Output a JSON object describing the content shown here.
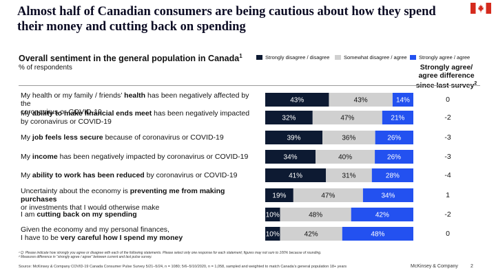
{
  "header": {
    "title": "Almost half of Canadian consumers are being cautious about how they spend their money and cutting back on spending",
    "flag_icon": "canada-flag-icon"
  },
  "chart_header": {
    "subtitle": "Overall sentiment in the general population in Canada",
    "subtitle_footnote": "1",
    "unit": "% of respondents",
    "diff_header": [
      "Strongly agree/",
      "agree difference",
      "since last survey"
    ],
    "diff_header_footnote": "2"
  },
  "chart_data": {
    "type": "bar",
    "stacked": true,
    "orientation": "horizontal",
    "normalized": true,
    "colors": {
      "disagree": "#0d1a32",
      "somewhat": "#d0d0d0",
      "agree": "#2351f0"
    },
    "legend": [
      {
        "key": "disagree",
        "label": "Strongly disagree / disagree"
      },
      {
        "key": "somewhat",
        "label": "Somewhat disagree / agree"
      },
      {
        "key": "agree",
        "label": "Strongly agree / agree"
      }
    ],
    "rows": [
      {
        "label_parts": [
          {
            "t": "My health or my family / friends’ "
          },
          {
            "t": "health",
            "b": true
          },
          {
            "t": " has been negatively affected by the"
          },
          {
            "br": true
          },
          {
            "t": "coronavirus or COVID-19"
          }
        ],
        "values": [
          43,
          43,
          14
        ],
        "diff": "0"
      },
      {
        "label_parts": [
          {
            "t": "My "
          },
          {
            "t": "ability to make financial ends meet",
            "b": true
          },
          {
            "t": " has been negatively impacted"
          },
          {
            "br": true
          },
          {
            "t": "by coronavirus or COVID-19"
          }
        ],
        "values": [
          32,
          47,
          21
        ],
        "diff": "-2"
      },
      {
        "label_parts": [
          {
            "t": "My "
          },
          {
            "t": "job feels less secure",
            "b": true
          },
          {
            "t": " because of coronavirus or COVID-19"
          }
        ],
        "values": [
          39,
          36,
          26
        ],
        "diff": "-3"
      },
      {
        "label_parts": [
          {
            "t": "My "
          },
          {
            "t": "income",
            "b": true
          },
          {
            "t": " has been negatively impacted by coronavirus or COVID-19"
          }
        ],
        "values": [
          34,
          40,
          26
        ],
        "diff": "-3"
      },
      {
        "label_parts": [
          {
            "t": "My "
          },
          {
            "t": "ability to work has been reduced",
            "b": true
          },
          {
            "t": " by coronavirus or COVID-19"
          }
        ],
        "values": [
          41,
          31,
          28
        ],
        "diff": "-4"
      },
      {
        "label_parts": [
          {
            "t": "Uncertainty about the economy is "
          },
          {
            "t": "preventing me from making purchases",
            "b": true
          },
          {
            "br": true
          },
          {
            "t": "or investments that I would otherwise make"
          }
        ],
        "values": [
          19,
          47,
          34
        ],
        "diff": "1"
      },
      {
        "label_parts": [
          {
            "t": "I am "
          },
          {
            "t": "cutting back on my spending",
            "b": true
          }
        ],
        "values": [
          10,
          48,
          42
        ],
        "diff": "-2"
      },
      {
        "label_parts": [
          {
            "t": "Given the economy and my personal finances,"
          },
          {
            "br": true
          },
          {
            "t": "I have to be "
          },
          {
            "t": "very careful how I spend my money",
            "b": true
          }
        ],
        "values": [
          10,
          42,
          48
        ],
        "diff": "0"
      }
    ]
  },
  "footnotes": [
    "¹ Q: Please indicate how strongly you agree or disagree with each of the following statements. Please select only one response for each statement; figures may not sum to 100% because of rounding.",
    "² Measures difference in “strongly agree / agree” between current and last pulse survey."
  ],
  "source": "Source: McKinsey & Company COVID-19 Canada Consumer Pulse Survey 5/21–5/24, n = 1080; 5/6–5/10/2020, n = 1,058, sampled and weighted to match Canada’s general population 18+ years",
  "brand": "McKinsey & Company",
  "page_number": "2"
}
